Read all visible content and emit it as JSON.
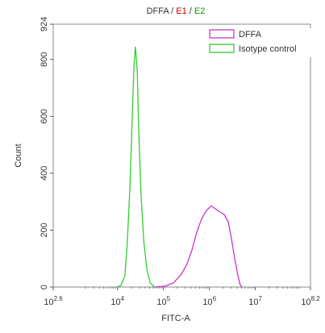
{
  "chart_data": {
    "type": "line",
    "title": [
      {
        "text": "DFFA",
        "color": "#333333"
      },
      {
        "text": " / ",
        "color": "#333333"
      },
      {
        "text": "E1",
        "color": "#cc0000"
      },
      {
        "text": " / ",
        "color": "#333333"
      },
      {
        "text": "E2",
        "color": "#009900"
      }
    ],
    "xlabel": "FITC-A",
    "ylabel": "Count",
    "xscale": "log",
    "xlim": [
      398.1,
      158489319
    ],
    "ylim": [
      0,
      924
    ],
    "xticks": [
      {
        "value": 398.1,
        "label": "10^2.6"
      },
      {
        "value": 10000,
        "label": "10^4"
      },
      {
        "value": 100000,
        "label": "10^5"
      },
      {
        "value": 1000000,
        "label": "10^6"
      },
      {
        "value": 10000000,
        "label": "10^7"
      },
      {
        "value": 158489319,
        "label": "10^8.2"
      }
    ],
    "yticks": [
      0,
      200,
      400,
      600,
      800,
      924
    ],
    "legend": "upper right",
    "series": [
      {
        "name": "DFFA",
        "color": "#cc33cc",
        "x": [
          60300,
          110000,
          166000,
          245000,
          324000,
          417000,
          525000,
          676000,
          871000,
          1096000,
          1349000,
          1660000,
          2089000,
          2570000,
          3020000,
          3548000,
          4169000,
          4677000,
          5129000
        ],
        "values": [
          0,
          3,
          15,
          45,
          80,
          130,
          190,
          240,
          270,
          285,
          275,
          265,
          255,
          230,
          170,
          100,
          40,
          8,
          0
        ]
      },
      {
        "name": "Isotype control",
        "color": "#33cc33",
        "x": [
          9800,
          11750,
          14450,
          16200,
          18600,
          20900,
          22900,
          24500,
          26900,
          28800,
          32400,
          37200,
          43700,
          51300,
          64600
        ],
        "values": [
          0,
          5,
          40,
          150,
          350,
          600,
          780,
          845,
          760,
          560,
          330,
          160,
          60,
          15,
          0
        ]
      }
    ]
  }
}
